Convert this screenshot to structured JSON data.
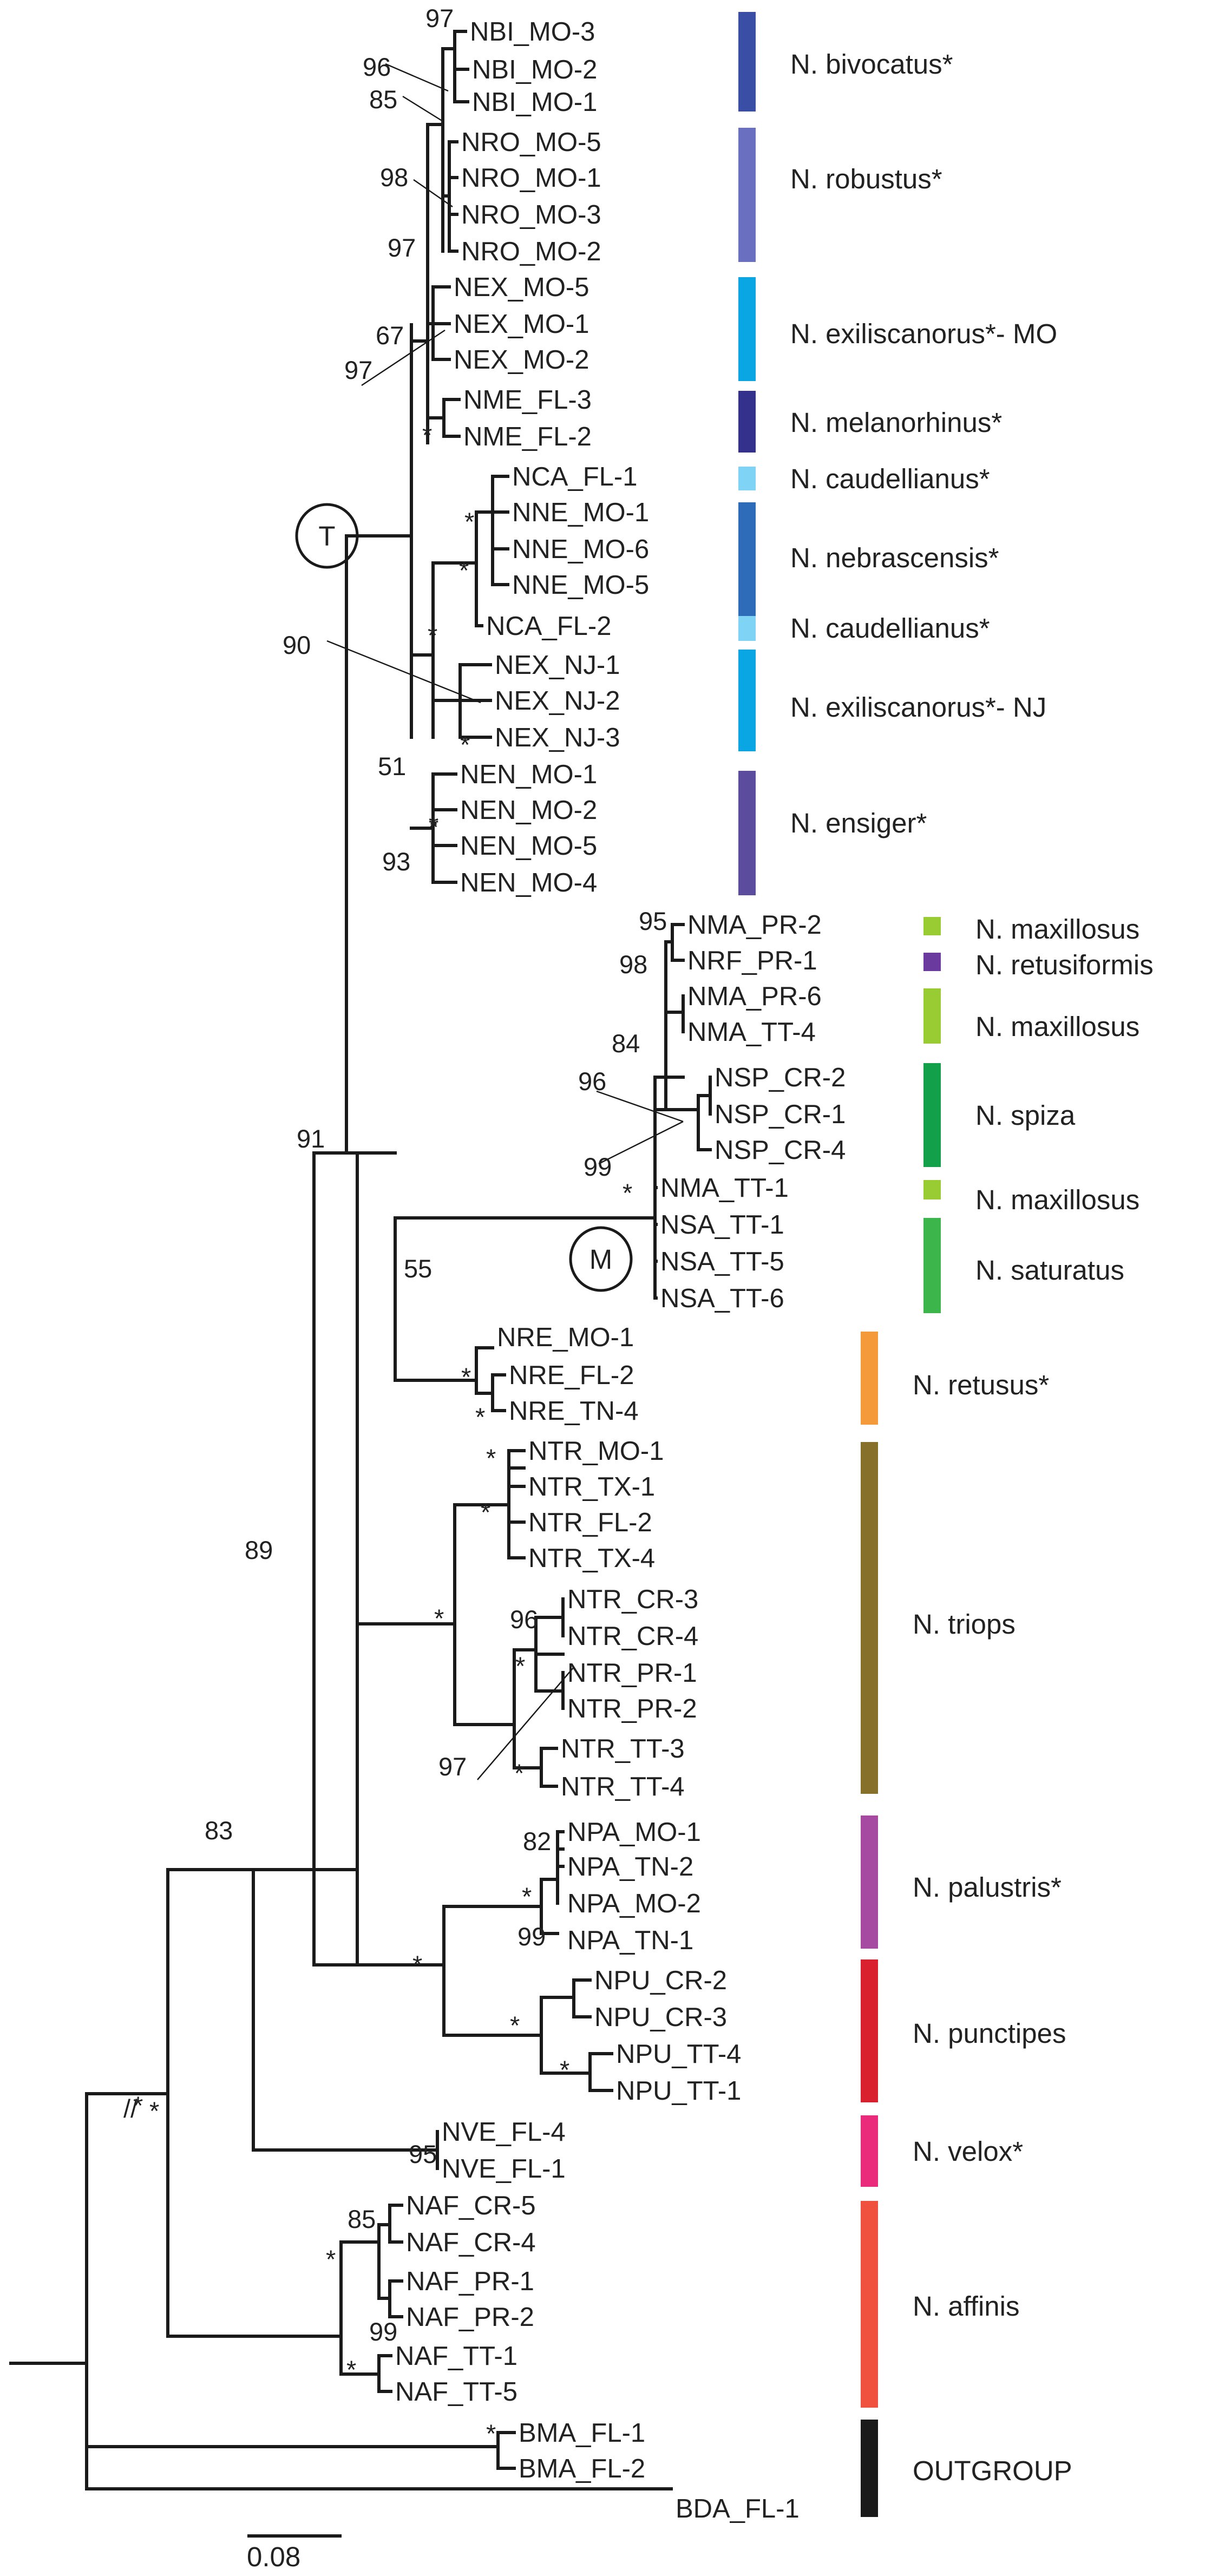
{
  "tips": [
    "NBI_MO-3",
    "NBI_MO-2",
    "NBI_MO-1",
    "NRO_MO-5",
    "NRO_MO-1",
    "NRO_MO-3",
    "NRO_MO-2",
    "NEX_MO-5",
    "NEX_MO-1",
    "NEX_MO-2",
    "NME_FL-3",
    "NME_FL-2",
    "NCA_FL-1",
    "NNE_MO-1",
    "NNE_MO-6",
    "NNE_MO-5",
    "NCA_FL-2",
    "NEX_NJ-1",
    "NEX_NJ-2",
    "NEX_NJ-3",
    "NEN_MO-1",
    "NEN_MO-2",
    "NEN_MO-5",
    "NEN_MO-4",
    "NMA_PR-2",
    "NRF_PR-1",
    "NMA_PR-6",
    "NMA_TT-4",
    "NSP_CR-2",
    "NSP_CR-1",
    "NSP_CR-4",
    "NMA_TT-1",
    "NSA_TT-1",
    "NSA_TT-5",
    "NSA_TT-6",
    "NRE_MO-1",
    "NRE_FL-2",
    "NRE_TN-4",
    "NTR_MO-1",
    "NTR_TX-1",
    "NTR_FL-2",
    "NTR_TX-4",
    "NTR_CR-3",
    "NTR_CR-4",
    "NTR_PR-1",
    "NTR_PR-2",
    "NTR_TT-3",
    "NTR_TT-4",
    "NPA_MO-1",
    "NPA_TN-2",
    "NPA_MO-2",
    "NPA_TN-1",
    "NPU_CR-2",
    "NPU_CR-3",
    "NPU_TT-4",
    "NPU_TT-1",
    "NVE_FL-4",
    "NVE_FL-1",
    "NAF_CR-5",
    "NAF_CR-4",
    "NAF_PR-1",
    "NAF_PR-2",
    "NAF_TT-1",
    "NAF_TT-5",
    "BMA_FL-1",
    "BMA_FL-2",
    "BDA_FL-1"
  ],
  "groups": [
    {
      "label": "N. bivocatus*",
      "color": "#3a4ea6"
    },
    {
      "label": "N. robustus*",
      "color": "#6a6fbf"
    },
    {
      "label": "N. exiliscanorus*- MO",
      "color": "#0aa6e3"
    },
    {
      "label": "N. melanorhinus*",
      "color": "#33318c"
    },
    {
      "label": "N. caudellianus*",
      "color": "#7fd3f5"
    },
    {
      "label": "N. nebrascensis*",
      "color": "#2e6bb8"
    },
    {
      "label": "N. caudellianus*",
      "color": "#7fd3f5"
    },
    {
      "label": "N. exiliscanorus*- NJ",
      "color": "#0aa6e3"
    },
    {
      "label": "N. ensiger*",
      "color": "#5b4c9e"
    },
    {
      "label": "N. maxillosus",
      "color": "#99cc33"
    },
    {
      "label": "N. retusiformis",
      "color": "#6b3a9e"
    },
    {
      "label": "N. maxillosus",
      "color": "#99cc33"
    },
    {
      "label": "N. spiza",
      "color": "#12a04a"
    },
    {
      "label": "N. maxillosus",
      "color": "#99cc33"
    },
    {
      "label": "N. saturatus",
      "color": "#3cb54a"
    },
    {
      "label": "N. retusus*",
      "color": "#f59a3a"
    },
    {
      "label": "N. triops",
      "color": "#87702a"
    },
    {
      "label": "N. palustris*",
      "color": "#a64aa1"
    },
    {
      "label": "N. punctipes",
      "color": "#d8202e"
    },
    {
      "label": "N. velox*",
      "color": "#ea2a7a"
    },
    {
      "label": "N. affinis",
      "color": "#f0513e"
    },
    {
      "label": "OUTGROUP",
      "color": "#1a1a1a"
    }
  ],
  "support": [
    "97",
    "96",
    "85",
    "98",
    "97",
    "67",
    "97",
    "*",
    "*",
    "*",
    "90",
    "*",
    "*",
    "*",
    "51",
    "93",
    "*",
    "95",
    "98",
    "84",
    "96",
    "99",
    "*",
    "91",
    "55",
    "*",
    "*",
    "89",
    "*",
    "*",
    "*",
    "96",
    "*",
    "97",
    "*",
    "83",
    "82",
    "*",
    "*",
    "99",
    "*",
    "*",
    "*",
    "*",
    "95",
    "85",
    "*",
    "99",
    "*",
    "*"
  ],
  "clade_markers": [
    "T",
    "M"
  ],
  "scale": {
    "label": "0.08"
  }
}
